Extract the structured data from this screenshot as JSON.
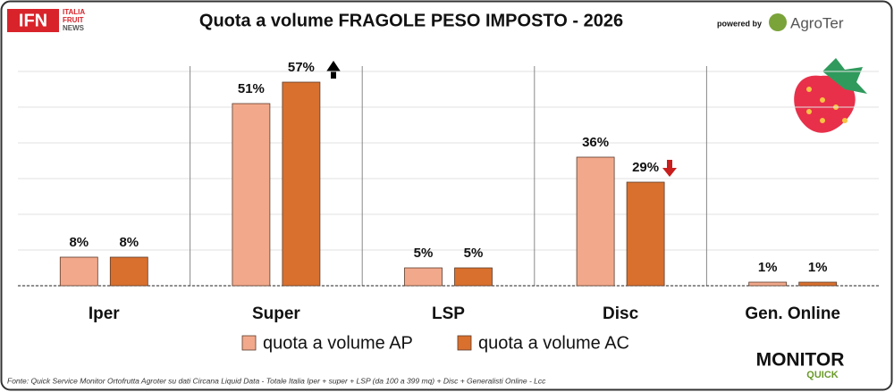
{
  "branding": {
    "logo": "IFN",
    "logo_sub": [
      "ITALIA",
      "FRUIT",
      "NEWS"
    ],
    "powered_by": "powered by",
    "partner": "AgroTer",
    "monitor": "MONITOR",
    "monitor_sub": "QUICK"
  },
  "chart_data": {
    "type": "bar",
    "title": "Quota a volume FRAGOLE PESO IMPOSTO - 2026",
    "categories": [
      "Iper",
      "Super",
      "LSP",
      "Disc",
      "Gen. Online"
    ],
    "series": [
      {
        "name": "quota a volume AP",
        "color": "#f2a98b",
        "values": [
          8,
          51,
          5,
          36,
          1
        ],
        "value_labels": [
          "8%",
          "51%",
          "5%",
          "36%",
          "1%"
        ]
      },
      {
        "name": "quota a volume AC",
        "color": "#d9702e",
        "values": [
          8,
          57,
          5,
          29,
          1
        ],
        "value_labels": [
          "8%",
          "57%",
          "5%",
          "29%",
          "1%"
        ]
      }
    ],
    "ylim": [
      0,
      60
    ],
    "yticks": [
      0,
      10,
      20,
      30,
      40,
      50,
      60
    ],
    "grid": true,
    "source": "Fonte: Quick Service Monitor Ortofrutta Agroter su dati Circana Liquid Data - Totale Italia Iper + super + LSP (da 100 a 399 mq) + Disc + Generalisti Online - Lcc"
  }
}
